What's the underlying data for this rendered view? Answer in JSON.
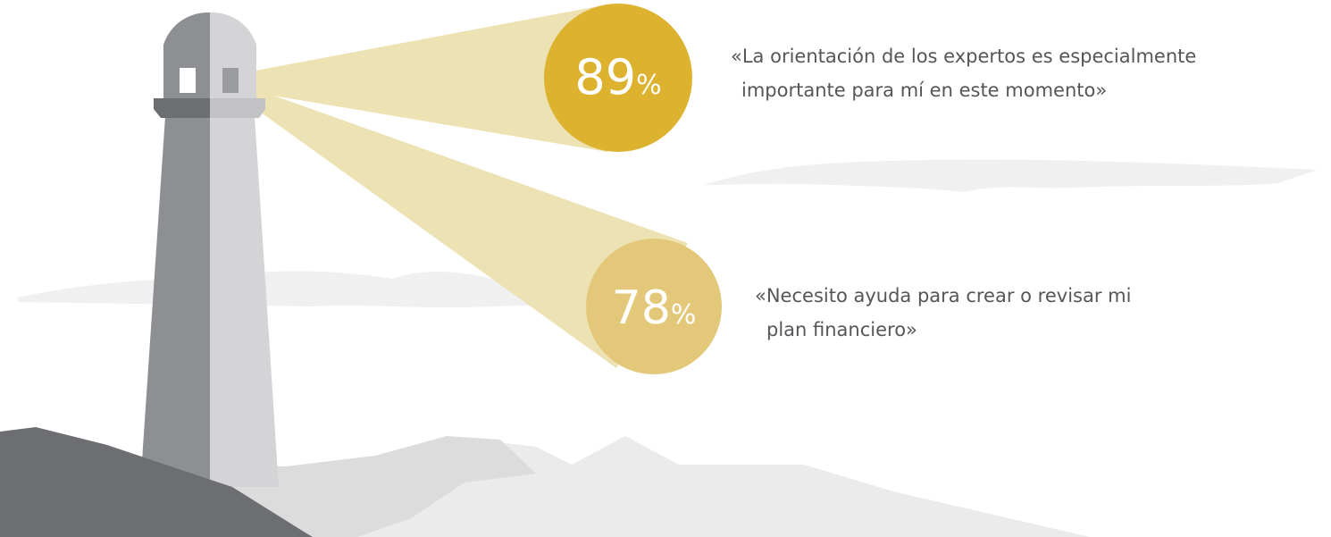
{
  "items": [
    {
      "value": 89,
      "unit": "%",
      "quote_lines": [
        "«La orientación de los expertos es especialmente",
        "importante para mí en este momento»"
      ]
    },
    {
      "value": 78,
      "unit": "%",
      "quote_lines": [
        "«Necesito ayuda para crear o revisar mi",
        "plan financiero»"
      ]
    }
  ]
}
